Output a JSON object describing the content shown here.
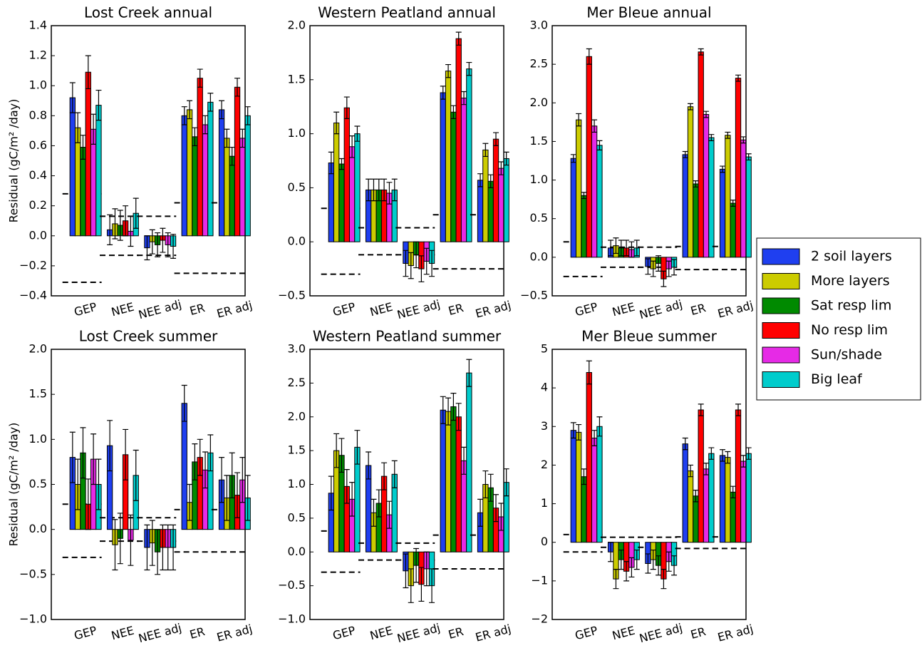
{
  "chart_data": [
    {
      "type": "bar",
      "title": "Lost Creek annual",
      "ylabel": "Residual (gC/m² /day)",
      "categories": [
        "GEP",
        "NEE",
        "NEE adj",
        "ER",
        "ER adj"
      ],
      "ylim": [
        -0.4,
        1.4
      ],
      "yticks": [
        {
          "value": -0.4,
          "label": "−0.4"
        },
        {
          "value": -0.2,
          "label": "−0.2"
        },
        {
          "value": 0,
          "label": "0.0"
        },
        0.2,
        0.4,
        0.6,
        0.8,
        {
          "value": 1,
          "label": "1.0"
        },
        1.2,
        1.4
      ],
      "upper": [
        0.28,
        0.13,
        0.13,
        0.22,
        0.22
      ],
      "lower": [
        -0.31,
        -0.13,
        -0.13,
        -0.25,
        -0.25
      ],
      "series": [
        {
          "name": "2 soil layers",
          "color": "#1f3ff0",
          "values": [
            0.92,
            0.04,
            -0.08,
            0.8,
            0.84
          ],
          "errors": [
            0.1,
            0.1,
            0.08,
            0.06,
            0.06
          ]
        },
        {
          "name": "More layers",
          "color": "#cccc00",
          "values": [
            0.72,
            0.08,
            -0.04,
            0.84,
            0.65
          ],
          "errors": [
            0.1,
            0.1,
            0.08,
            0.06,
            0.06
          ]
        },
        {
          "name": "Sat resp lim",
          "color": "#008a00",
          "values": [
            0.59,
            0.07,
            -0.06,
            0.66,
            0.53
          ],
          "errors": [
            0.08,
            0.1,
            0.08,
            0.06,
            0.06
          ]
        },
        {
          "name": "No resp lim",
          "color": "#ff0000",
          "values": [
            1.09,
            0.1,
            -0.03,
            1.05,
            0.99
          ],
          "errors": [
            0.11,
            0.1,
            0.08,
            0.06,
            0.06
          ]
        },
        {
          "name": "Sun/shade",
          "color": "#e62ae6",
          "values": [
            0.71,
            0.03,
            -0.06,
            0.74,
            0.65
          ],
          "errors": [
            0.1,
            0.1,
            0.08,
            0.06,
            0.06
          ]
        },
        {
          "name": "Big leaf",
          "color": "#00cccc",
          "values": [
            0.87,
            0.15,
            -0.07,
            0.89,
            0.8
          ],
          "errors": [
            0.1,
            0.1,
            0.08,
            0.06,
            0.06
          ]
        }
      ]
    },
    {
      "type": "bar",
      "title": "Western Peatland annual",
      "categories": [
        "GEP",
        "NEE",
        "NEE adj",
        "ER",
        "ER adj"
      ],
      "ylim": [
        -0.5,
        2.0
      ],
      "yticks": [
        {
          "value": -0.5,
          "label": "−0.5"
        },
        {
          "value": 0,
          "label": "0.0"
        },
        0.5,
        {
          "value": 1,
          "label": "1.0"
        },
        1.5,
        {
          "value": 2,
          "label": "2.0"
        }
      ],
      "upper": [
        0.31,
        0.13,
        0.13,
        0.25,
        0.25
      ],
      "lower": [
        -0.3,
        -0.12,
        -0.12,
        -0.25,
        -0.25
      ],
      "series": [
        {
          "color": "#1f3ff0",
          "values": [
            0.73,
            0.48,
            -0.2,
            1.38,
            0.57
          ],
          "errors": [
            0.1,
            0.1,
            0.12,
            0.06,
            0.06
          ]
        },
        {
          "color": "#cccc00",
          "values": [
            1.1,
            0.48,
            -0.22,
            1.58,
            0.85
          ],
          "errors": [
            0.1,
            0.1,
            0.12,
            0.06,
            0.06
          ]
        },
        {
          "color": "#008a00",
          "values": [
            0.72,
            0.48,
            -0.12,
            1.2,
            0.56
          ],
          "errors": [
            0.05,
            0.1,
            0.12,
            0.06,
            0.06
          ]
        },
        {
          "color": "#ff0000",
          "values": [
            1.24,
            0.48,
            -0.25,
            1.88,
            0.95
          ],
          "errors": [
            0.1,
            0.1,
            0.12,
            0.06,
            0.06
          ]
        },
        {
          "color": "#e62ae6",
          "values": [
            0.88,
            0.45,
            -0.18,
            1.33,
            0.68
          ],
          "errors": [
            0.1,
            0.1,
            0.12,
            0.06,
            0.06
          ]
        },
        {
          "color": "#00cccc",
          "values": [
            1.0,
            0.48,
            -0.2,
            1.6,
            0.77
          ],
          "errors": [
            0.07,
            0.1,
            0.12,
            0.06,
            0.06
          ]
        }
      ]
    },
    {
      "type": "bar",
      "title": "Mer Bleue annual",
      "categories": [
        "GEP",
        "NEE",
        "NEE adj",
        "ER",
        "ER adj"
      ],
      "ylim": [
        -0.5,
        3.0
      ],
      "yticks": [
        {
          "value": -0.5,
          "label": "−0.5"
        },
        {
          "value": 0,
          "label": "0.0"
        },
        0.5,
        {
          "value": 1,
          "label": "1.0"
        },
        1.5,
        {
          "value": 2,
          "label": "2.0"
        },
        2.5,
        {
          "value": 3,
          "label": "3.0"
        }
      ],
      "upper": [
        0.2,
        0.13,
        0.13,
        0.14,
        0.14
      ],
      "lower": [
        -0.25,
        -0.13,
        -0.13,
        -0.16,
        -0.16
      ],
      "series": [
        {
          "color": "#1f3ff0",
          "values": [
            1.28,
            0.12,
            -0.12,
            1.33,
            1.14
          ],
          "errors": [
            0.05,
            0.1,
            0.1,
            0.04,
            0.04
          ]
        },
        {
          "color": "#cccc00",
          "values": [
            1.78,
            0.15,
            -0.15,
            1.95,
            1.58
          ],
          "errors": [
            0.08,
            0.1,
            0.1,
            0.04,
            0.04
          ]
        },
        {
          "color": "#008a00",
          "values": [
            0.8,
            0.12,
            -0.08,
            0.95,
            0.7
          ],
          "errors": [
            0.04,
            0.1,
            0.1,
            0.04,
            0.04
          ]
        },
        {
          "color": "#ff0000",
          "values": [
            2.6,
            0.12,
            -0.28,
            2.66,
            2.32
          ],
          "errors": [
            0.1,
            0.1,
            0.1,
            0.04,
            0.04
          ]
        },
        {
          "color": "#e62ae6",
          "values": [
            1.7,
            0.1,
            -0.15,
            1.85,
            1.52
          ],
          "errors": [
            0.08,
            0.1,
            0.1,
            0.04,
            0.04
          ]
        },
        {
          "color": "#00cccc",
          "values": [
            1.45,
            0.12,
            -0.13,
            1.55,
            1.3
          ],
          "errors": [
            0.06,
            0.1,
            0.1,
            0.04,
            0.04
          ]
        }
      ]
    },
    {
      "type": "bar",
      "title": "Lost Creek summer",
      "ylabel": "Residual (gC/m² /day)",
      "categories": [
        "GEP",
        "NEE",
        "NEE adj",
        "ER",
        "ER adj"
      ],
      "ylim": [
        -1.0,
        2.0
      ],
      "yticks": [
        {
          "value": -1,
          "label": "−1.0"
        },
        {
          "value": -0.5,
          "label": "−0.5"
        },
        {
          "value": 0,
          "label": "0.0"
        },
        0.5,
        {
          "value": 1,
          "label": "1.0"
        },
        1.5,
        {
          "value": 2,
          "label": "2.0"
        }
      ],
      "upper": [
        0.28,
        0.13,
        0.13,
        0.22,
        0.22
      ],
      "lower": [
        -0.31,
        -0.13,
        -0.13,
        -0.25,
        -0.25
      ],
      "series": [
        {
          "color": "#1f3ff0",
          "values": [
            0.8,
            0.93,
            -0.2,
            1.4,
            0.55
          ],
          "errors": [
            0.28,
            0.28,
            0.25,
            0.2,
            0.25
          ]
        },
        {
          "color": "#cccc00",
          "values": [
            0.5,
            -0.17,
            -0.15,
            0.3,
            0.35
          ],
          "errors": [
            0.28,
            0.28,
            0.25,
            0.2,
            0.25
          ]
        },
        {
          "color": "#008a00",
          "values": [
            0.85,
            -0.1,
            -0.25,
            0.75,
            0.6
          ],
          "errors": [
            0.28,
            0.28,
            0.25,
            0.2,
            0.25
          ]
        },
        {
          "color": "#ff0000",
          "values": [
            0.28,
            0.83,
            -0.2,
            0.8,
            0.38
          ],
          "errors": [
            0.28,
            0.28,
            0.25,
            0.2,
            0.25
          ]
        },
        {
          "color": "#e62ae6",
          "values": [
            0.78,
            -0.12,
            -0.2,
            0.66,
            0.55
          ],
          "errors": [
            0.28,
            0.28,
            0.25,
            0.2,
            0.25
          ]
        },
        {
          "color": "#00cccc",
          "values": [
            0.5,
            0.6,
            -0.2,
            0.85,
            0.35
          ],
          "errors": [
            0.28,
            0.28,
            0.25,
            0.2,
            0.25
          ]
        }
      ]
    },
    {
      "type": "bar",
      "title": "Western Peatland summer",
      "categories": [
        "GEP",
        "NEE",
        "NEE adj",
        "ER",
        "ER adj"
      ],
      "ylim": [
        -1.0,
        3.0
      ],
      "yticks": [
        {
          "value": -1,
          "label": "−1.0"
        },
        {
          "value": -0.5,
          "label": "−0.5"
        },
        {
          "value": 0,
          "label": "0.0"
        },
        0.5,
        {
          "value": 1,
          "label": "1.0"
        },
        1.5,
        {
          "value": 2,
          "label": "2.0"
        },
        2.5,
        {
          "value": 3,
          "label": "3.0"
        }
      ],
      "upper": [
        0.31,
        0.13,
        0.13,
        0.25,
        0.25
      ],
      "lower": [
        -0.3,
        -0.12,
        -0.12,
        -0.25,
        -0.25
      ],
      "series": [
        {
          "color": "#1f3ff0",
          "values": [
            0.87,
            1.28,
            -0.28,
            2.1,
            0.58
          ],
          "errors": [
            0.25,
            0.2,
            0.25,
            0.2,
            0.2
          ]
        },
        {
          "color": "#cccc00",
          "values": [
            1.5,
            0.58,
            -0.5,
            2.08,
            1.0
          ],
          "errors": [
            0.25,
            0.2,
            0.25,
            0.2,
            0.2
          ]
        },
        {
          "color": "#008a00",
          "values": [
            1.43,
            0.72,
            -0.2,
            2.15,
            0.95
          ],
          "errors": [
            0.25,
            0.2,
            0.25,
            0.2,
            0.2
          ]
        },
        {
          "color": "#ff0000",
          "values": [
            0.97,
            1.12,
            -0.48,
            2.0,
            0.65
          ],
          "errors": [
            0.25,
            0.2,
            0.25,
            0.2,
            0.2
          ]
        },
        {
          "color": "#e62ae6",
          "values": [
            0.78,
            0.55,
            -0.25,
            1.35,
            0.52
          ],
          "errors": [
            0.25,
            0.2,
            0.25,
            0.2,
            0.2
          ]
        },
        {
          "color": "#00cccc",
          "values": [
            1.55,
            1.15,
            -0.5,
            2.65,
            1.03
          ],
          "errors": [
            0.25,
            0.2,
            0.25,
            0.2,
            0.2
          ]
        }
      ]
    },
    {
      "type": "bar",
      "title": "Mer Bleue summer",
      "categories": [
        "GEP",
        "NEE",
        "NEE adj",
        "ER",
        "ER adj"
      ],
      "ylim": [
        -2,
        5
      ],
      "yticks": [
        {
          "value": -2,
          "label": "−2"
        },
        {
          "value": -1,
          "label": "−1"
        },
        0,
        1,
        2,
        3,
        4,
        5
      ],
      "upper": [
        0.2,
        0.13,
        0.13,
        0.14,
        0.14
      ],
      "lower": [
        -0.25,
        -0.13,
        -0.13,
        -0.16,
        -0.16
      ],
      "series": [
        {
          "color": "#1f3ff0",
          "values": [
            2.9,
            -0.25,
            -0.55,
            2.55,
            2.25
          ],
          "errors": [
            0.2,
            0.25,
            0.25,
            0.15,
            0.15
          ]
        },
        {
          "color": "#cccc00",
          "values": [
            2.85,
            -0.95,
            -0.45,
            1.85,
            2.2
          ],
          "errors": [
            0.2,
            0.25,
            0.25,
            0.15,
            0.15
          ]
        },
        {
          "color": "#008a00",
          "values": [
            1.7,
            -0.45,
            -0.6,
            1.2,
            1.3
          ],
          "errors": [
            0.2,
            0.25,
            0.25,
            0.15,
            0.15
          ]
        },
        {
          "color": "#ff0000",
          "values": [
            4.4,
            -0.75,
            -0.95,
            3.43,
            3.43
          ],
          "errors": [
            0.3,
            0.25,
            0.25,
            0.15,
            0.15
          ]
        },
        {
          "color": "#e62ae6",
          "values": [
            2.7,
            -0.65,
            -0.5,
            1.9,
            2.1
          ],
          "errors": [
            0.2,
            0.25,
            0.25,
            0.15,
            0.15
          ]
        },
        {
          "color": "#00cccc",
          "values": [
            3.0,
            -0.45,
            -0.6,
            2.3,
            2.3
          ],
          "errors": [
            0.25,
            0.25,
            0.25,
            0.15,
            0.15
          ]
        }
      ]
    }
  ]
}
